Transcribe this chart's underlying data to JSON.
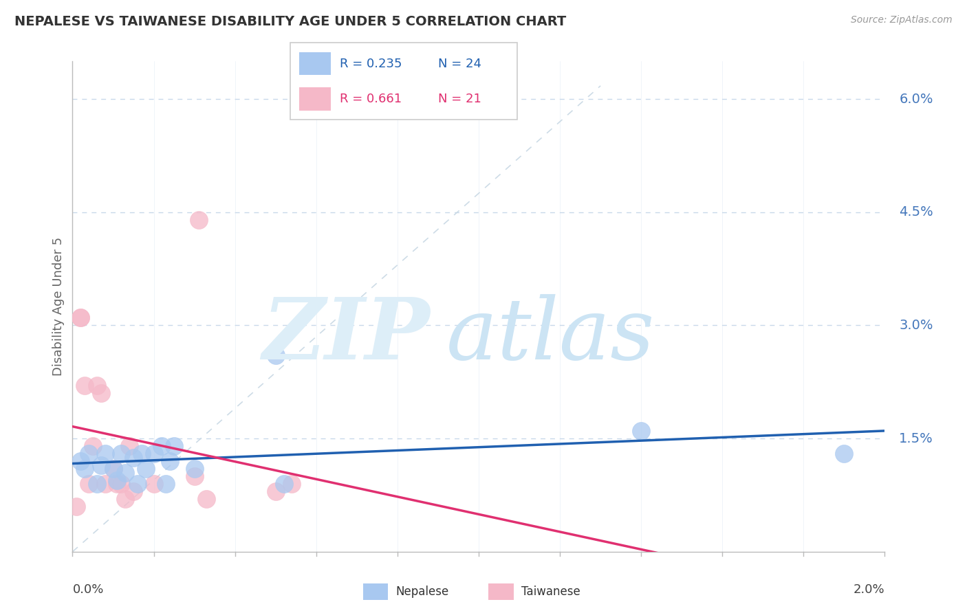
{
  "title": "NEPALESE VS TAIWANESE DISABILITY AGE UNDER 5 CORRELATION CHART",
  "source": "Source: ZipAtlas.com",
  "ylabel": "Disability Age Under 5",
  "ytick_labels": [
    "1.5%",
    "3.0%",
    "4.5%",
    "6.0%"
  ],
  "ytick_values": [
    0.015,
    0.03,
    0.045,
    0.06
  ],
  "xmin": 0.0,
  "xmax": 0.02,
  "ymin": 0.0,
  "ymax": 0.065,
  "nepalese_color": "#a8c8f0",
  "taiwanese_color": "#f5b8c8",
  "nepalese_line_color": "#2060b0",
  "taiwanese_line_color": "#e03070",
  "nepalese_x": [
    0.0002,
    0.0003,
    0.0004,
    0.0006,
    0.0007,
    0.0008,
    0.001,
    0.0011,
    0.0012,
    0.0013,
    0.0015,
    0.0016,
    0.0017,
    0.0018,
    0.002,
    0.0022,
    0.0023,
    0.0024,
    0.0025,
    0.003,
    0.005,
    0.0052,
    0.014,
    0.019
  ],
  "nepalese_y": [
    0.012,
    0.011,
    0.013,
    0.009,
    0.0115,
    0.013,
    0.011,
    0.0095,
    0.013,
    0.0105,
    0.0125,
    0.009,
    0.013,
    0.011,
    0.013,
    0.014,
    0.009,
    0.012,
    0.014,
    0.011,
    0.026,
    0.009,
    0.016,
    0.013
  ],
  "taiwanese_x": [
    0.0001,
    0.0002,
    0.0002,
    0.0003,
    0.0004,
    0.0005,
    0.0006,
    0.0007,
    0.0008,
    0.001,
    0.0011,
    0.0012,
    0.0013,
    0.0014,
    0.0015,
    0.002,
    0.003,
    0.0031,
    0.0033,
    0.005,
    0.0054
  ],
  "taiwanese_y": [
    0.006,
    0.031,
    0.031,
    0.022,
    0.009,
    0.014,
    0.022,
    0.021,
    0.009,
    0.011,
    0.009,
    0.009,
    0.007,
    0.014,
    0.008,
    0.009,
    0.01,
    0.044,
    0.007,
    0.008,
    0.009
  ],
  "background_color": "#ffffff",
  "grid_color": "#c8d8ea",
  "title_color": "#333333",
  "source_color": "#999999",
  "yaxis_label_color": "#4477bb",
  "axis_color": "#bbbbbb",
  "diag_color": "#c8d8e4",
  "watermark_zip_color": "#ddeef8",
  "watermark_atlas_color": "#cce4f4",
  "legend_nep_label": "R = 0.235",
  "legend_nep_n": "N = 24",
  "legend_tai_label": "R = 0.661",
  "legend_tai_n": "N = 21"
}
